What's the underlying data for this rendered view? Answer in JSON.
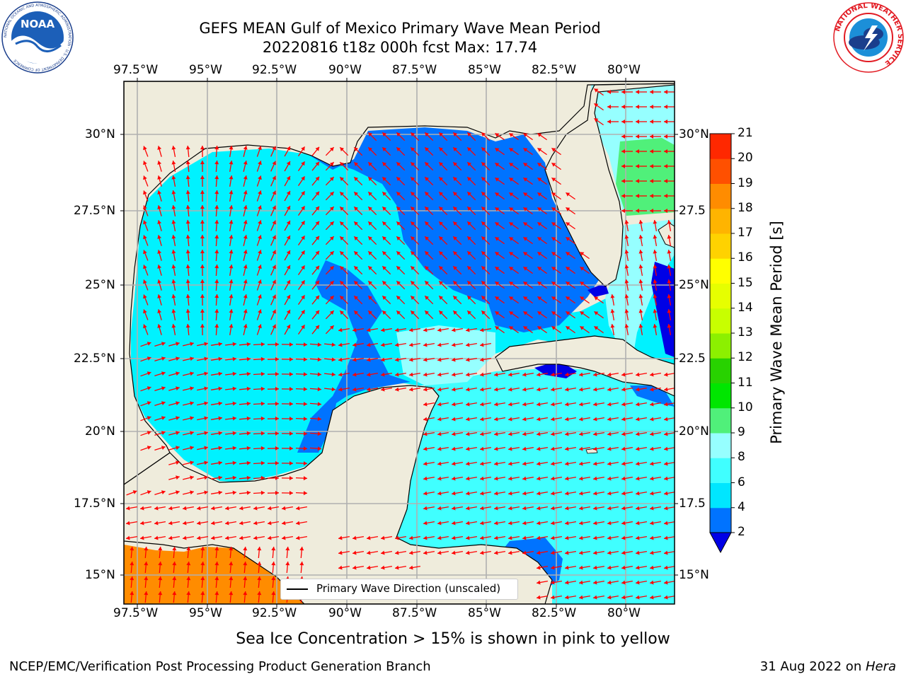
{
  "header": {
    "title_line1": "GEFS MEAN Gulf of Mexico Primary Wave Mean Period",
    "title_line2": "20220816 t18z 000h fcst   Max: 17.74"
  },
  "logos": {
    "left": "NOAA",
    "left_ring": "NATIONAL OCEANIC AND ATMOSPHERIC ADMINISTRATION · U.S. DEPARTMENT OF COMMERCE",
    "right_ring": "NATIONAL WEATHER SERVICE"
  },
  "axes": {
    "lon_ticks": [
      "97.5°W",
      "95°W",
      "92.5°W",
      "90°W",
      "87.5°W",
      "85°W",
      "82.5°W",
      "80°W"
    ],
    "lat_ticks_left": [
      "30°N",
      "27.5°N",
      "25°N",
      "22.5°N",
      "20°N",
      "17.5°N",
      "15°N"
    ],
    "lat_ticks_right": [
      "30°N",
      "27.5",
      "25°N",
      "22.5",
      "20°N",
      "17.5",
      "15°N"
    ]
  },
  "legend": {
    "label": "Primary Wave Direction (unscaled)"
  },
  "colorbar": {
    "label": "Primary Wave Mean Period [s]",
    "levels": [
      "2",
      "4",
      "6",
      "8",
      "9",
      "10",
      "11",
      "12",
      "13",
      "14",
      "15",
      "16",
      "17",
      "18",
      "19",
      "20",
      "21"
    ],
    "colors": [
      "#0000e6",
      "#0073ff",
      "#00e6ff",
      "#40ffff",
      "#96ffff",
      "#50f07a",
      "#00e600",
      "#28d200",
      "#8cf000",
      "#c8ff00",
      "#e6ff00",
      "#ffff00",
      "#ffd200",
      "#ffb400",
      "#ff8c00",
      "#ff5000",
      "#ff2800",
      "#ff0000"
    ]
  },
  "footer": {
    "note": "Sea Ice Concentration > 15% is shown in pink to yellow",
    "credit": "NCEP/EMC/Verification Post Processing Product Generation Branch",
    "date": "31 Aug 2022 on ",
    "machine": "Hera"
  },
  "style": {
    "land": "#efecdc",
    "arrow": "#ff0000",
    "grid": "#b0b0b0"
  }
}
